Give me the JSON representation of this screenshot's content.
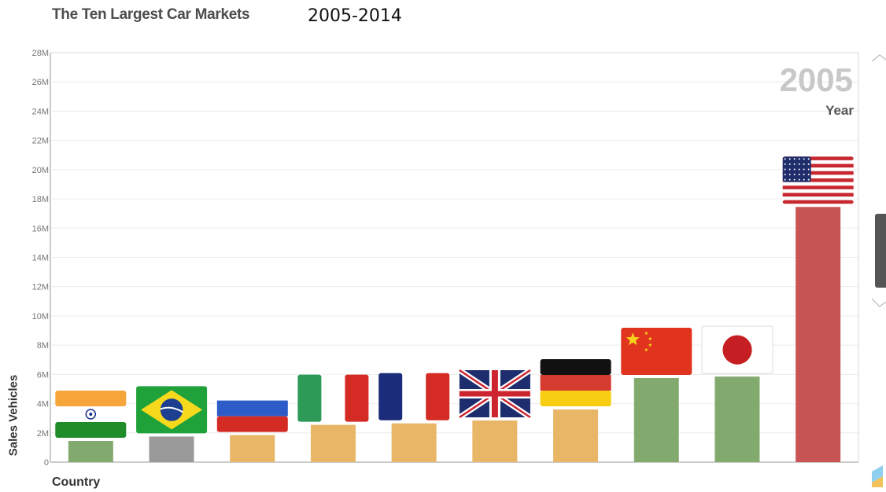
{
  "header": {
    "title": "The Ten Largest Car Markets",
    "subtitle": "2005-2014"
  },
  "year_display": {
    "year": "2005",
    "caption": "Year"
  },
  "chart_data": {
    "type": "bar",
    "title": "The Ten Largest Car Markets",
    "subtitle": "2005-2014",
    "xlabel": "Country",
    "ylabel": "Sales Vehicles",
    "ylim": [
      0,
      28000000
    ],
    "yticks": [
      "0",
      "2M",
      "4M",
      "6M",
      "8M",
      "10M",
      "12M",
      "14M",
      "16M",
      "18M",
      "20M",
      "22M",
      "24M",
      "26M",
      "28M"
    ],
    "grid": true,
    "categories": [
      "India",
      "Brazil",
      "Russia",
      "Italy",
      "France",
      "United Kingdom",
      "Germany",
      "China",
      "Japan",
      "United States"
    ],
    "values": [
      1450000,
      1750000,
      1850000,
      2550000,
      2650000,
      2850000,
      3600000,
      5750000,
      5850000,
      17450000
    ],
    "colors": [
      "#83aa6e",
      "#9a9a9a",
      "#e9b667",
      "#e9b667",
      "#e9b667",
      "#e9b667",
      "#e9b667",
      "#83aa6e",
      "#83aa6e",
      "#c85555"
    ],
    "flags": [
      "flag-india-icon",
      "flag-brazil-icon",
      "flag-russia-icon",
      "flag-italy-icon",
      "flag-france-icon",
      "flag-uk-icon",
      "flag-germany-icon",
      "flag-china-icon",
      "flag-japan-icon",
      "flag-usa-icon"
    ]
  },
  "colors": {
    "grid": "#ececec",
    "axis": "#9a9a9a",
    "tick_text": "#777777"
  }
}
